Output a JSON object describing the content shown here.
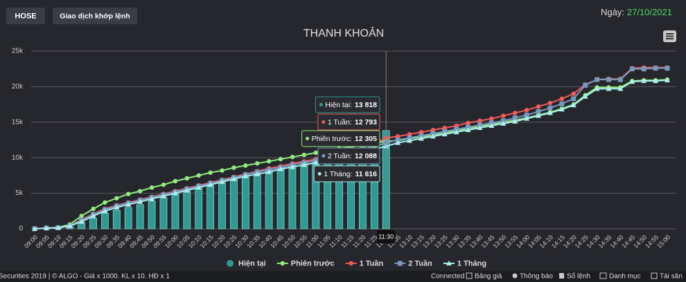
{
  "header": {
    "buttons": [
      "HOSE",
      "Giao dịch khớp lệnh"
    ],
    "date_label": "Ngày:",
    "date": "27/10/2021"
  },
  "chart_data": {
    "type": "line",
    "title": "THANH KHOẢN",
    "categories": [
      "09:00",
      "09:05",
      "09:10",
      "09:15",
      "09:20",
      "09:25",
      "09:30",
      "09:35",
      "09:40",
      "09:45",
      "09:50",
      "09:55",
      "10:00",
      "10:05",
      "10:10",
      "10:15",
      "10:20",
      "10:25",
      "10:30",
      "10:35",
      "10:40",
      "10:45",
      "10:50",
      "10:55",
      "11:00",
      "11:05",
      "11:10",
      "11:15",
      "11:20",
      "11:25",
      "11:30",
      "13:05",
      "13:10",
      "13:15",
      "13:20",
      "13:25",
      "13:30",
      "13:35",
      "13:40",
      "13:45",
      "13:50",
      "13:55",
      "14:00",
      "14:05",
      "14:10",
      "14:15",
      "14:20",
      "14:25",
      "14:30",
      "14:35",
      "14:40",
      "14:45",
      "14:50",
      "14:55",
      "15:00"
    ],
    "ylim": [
      0,
      25000
    ],
    "yticks": [
      0,
      {
        "value": 5000,
        "label": "5k"
      },
      {
        "value": 10000,
        "label": "10k"
      },
      {
        "value": 15000,
        "label": "15k"
      },
      {
        "value": 20000,
        "label": "20k"
      },
      {
        "value": 25000,
        "label": "25k"
      }
    ],
    "grid": true,
    "legend": "bottom",
    "series": [
      {
        "name": "Hiện tại",
        "type": "column",
        "color": "#2f9a93",
        "values": [
          0,
          50,
          100,
          300,
          900,
          1500,
          2200,
          2600,
          3000,
          3400,
          3900,
          4400,
          4900,
          5300,
          5700,
          6100,
          6500,
          7000,
          7500,
          7900,
          8200,
          8600,
          8900,
          9300,
          9600,
          9900,
          10300,
          10600,
          10900,
          11300,
          13818,
          null,
          null,
          null,
          null,
          null,
          null,
          null,
          null,
          null,
          null,
          null,
          null,
          null,
          null,
          null,
          null,
          null,
          null,
          null,
          null,
          null,
          null,
          null,
          null
        ]
      },
      {
        "name": "Phiên trước",
        "color": "#90ed7d",
        "marker": "circle",
        "values": [
          0,
          100,
          200,
          600,
          1800,
          2800,
          3700,
          4300,
          4900,
          5300,
          5800,
          6200,
          6700,
          7100,
          7500,
          7900,
          8200,
          8600,
          8900,
          9200,
          9500,
          9800,
          10100,
          10400,
          10700,
          11000,
          11300,
          11500,
          11800,
          12100,
          12305,
          12400,
          12700,
          12900,
          13200,
          13500,
          13800,
          14100,
          14400,
          14700,
          15000,
          15300,
          15600,
          16000,
          16400,
          16900,
          17500,
          18800,
          19900,
          19900,
          19900,
          20800,
          20900,
          20900,
          21000
        ]
      },
      {
        "name": "1 Tuần",
        "color": "#f45b5b",
        "marker": "circle",
        "values": [
          0,
          100,
          150,
          400,
          1300,
          2100,
          2800,
          3300,
          3700,
          4100,
          4500,
          4900,
          5300,
          5700,
          6100,
          6500,
          6900,
          7300,
          7700,
          8100,
          8500,
          8800,
          9200,
          9500,
          9800,
          10200,
          10600,
          11000,
          11500,
          12000,
          12793,
          13000,
          13300,
          13600,
          13900,
          14200,
          14500,
          14900,
          15200,
          15500,
          15900,
          16300,
          16700,
          17200,
          17700,
          18300,
          19000,
          20300,
          21000,
          21100,
          21100,
          22600,
          22700,
          22700,
          22700
        ]
      },
      {
        "name": "2 Tuần",
        "color": "#7798bf",
        "marker": "square",
        "values": [
          0,
          100,
          150,
          400,
          1200,
          2000,
          2700,
          3200,
          3600,
          4000,
          4400,
          4800,
          5200,
          5600,
          6000,
          6400,
          6800,
          7200,
          7600,
          8000,
          8300,
          8600,
          9000,
          9300,
          9600,
          10000,
          10400,
          10800,
          11200,
          11600,
          12088,
          12500,
          12800,
          13100,
          13400,
          13700,
          14000,
          14300,
          14600,
          14900,
          15200,
          15600,
          16000,
          16500,
          17000,
          17600,
          18300,
          20200,
          21000,
          21000,
          21000,
          22500,
          22500,
          22600,
          22600
        ]
      },
      {
        "name": "1 Tháng",
        "color": "#aaeeee",
        "marker": "triangle",
        "values": [
          0,
          100,
          150,
          400,
          1000,
          1800,
          2500,
          3000,
          3400,
          3800,
          4200,
          4600,
          5000,
          5400,
          5800,
          6200,
          6600,
          7000,
          7400,
          7700,
          8000,
          8400,
          8700,
          9000,
          9300,
          9700,
          10100,
          10500,
          10900,
          11200,
          11616,
          12100,
          12400,
          12700,
          13000,
          13300,
          13600,
          13900,
          14200,
          14500,
          14800,
          15100,
          15500,
          15900,
          16300,
          16800,
          17400,
          18600,
          19700,
          19700,
          19700,
          20700,
          20800,
          20800,
          20900
        ]
      }
    ],
    "tooltip": [
      {
        "name": "Hiện tại:",
        "value": "13 818",
        "color": "#2f9a93"
      },
      {
        "name": "1 Tuần:",
        "value": "12 793",
        "color": "#f45b5b"
      },
      {
        "name": "Phiên trước:",
        "value": "12 305",
        "color": "#90ed7d"
      },
      {
        "name": "2 Tuần:",
        "value": "12 088",
        "color": "#7798bf"
      },
      {
        "name": "1 Tháng:",
        "value": "11 616",
        "color": "#aaeeee"
      }
    ]
  },
  "status_bar": {
    "left": "Securities 2019 | © ALGO  -  Giá x 1000. KL x 10. HĐ x 1",
    "connection": "Connected",
    "menu": [
      "Bảng giá",
      "Thông báo",
      "Sổ lệnh",
      "Danh mục",
      "Tài sản"
    ]
  }
}
